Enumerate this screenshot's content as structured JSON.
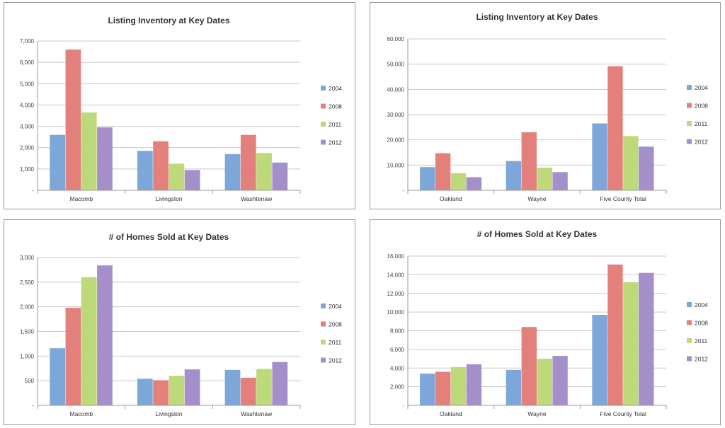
{
  "colors": {
    "2004": "#7da7d9",
    "2008": "#e4807c",
    "2011": "#bdd97a",
    "2012": "#a58fcb",
    "gridline": "#c8c8c8",
    "axis": "#9a9a9a"
  },
  "chart_data": [
    {
      "type": "bar",
      "title": "Listing Inventory at Key Dates",
      "categories": [
        "Macomb",
        "Livingston",
        "Washtenaw"
      ],
      "series": [
        {
          "name": "2004",
          "values": [
            2600,
            1850,
            1700
          ]
        },
        {
          "name": "2008",
          "values": [
            6600,
            2300,
            2600
          ]
        },
        {
          "name": "2011",
          "values": [
            3650,
            1250,
            1750
          ]
        },
        {
          "name": "2012",
          "values": [
            2950,
            950,
            1300
          ]
        }
      ],
      "yticks": [
        0,
        1000,
        2000,
        3000,
        4000,
        5000,
        6000,
        7000
      ],
      "ytick_labels": [
        "-",
        "1,000",
        "2,000",
        "3,000",
        "4,000",
        "5,000",
        "6,000",
        "7,000"
      ],
      "ylim": [
        0,
        7000
      ],
      "grid": true,
      "legend": "right"
    },
    {
      "type": "bar",
      "title": "Listing Inventory at Key Dates",
      "categories": [
        "Oakland",
        "Wayne",
        "Five County Total"
      ],
      "series": [
        {
          "name": "2004",
          "values": [
            9200,
            11600,
            26500
          ]
        },
        {
          "name": "2008",
          "values": [
            14700,
            23000,
            49200
          ]
        },
        {
          "name": "2011",
          "values": [
            6800,
            9000,
            21500
          ]
        },
        {
          "name": "2012",
          "values": [
            5200,
            7200,
            17300
          ]
        }
      ],
      "yticks": [
        0,
        10000,
        20000,
        30000,
        40000,
        50000,
        60000
      ],
      "ytick_labels": [
        "-",
        "10,000",
        "20,000",
        "30,000",
        "40,000",
        "50,000",
        "60,000"
      ],
      "ylim": [
        0,
        60000
      ],
      "grid": true,
      "legend": "right"
    },
    {
      "type": "bar",
      "title": "# of Homes Sold at Key Dates",
      "categories": [
        "Macomb",
        "Livingston",
        "Washtenaw"
      ],
      "series": [
        {
          "name": "2004",
          "values": [
            1160,
            540,
            720
          ]
        },
        {
          "name": "2008",
          "values": [
            1980,
            510,
            560
          ]
        },
        {
          "name": "2011",
          "values": [
            2600,
            600,
            740
          ]
        },
        {
          "name": "2012",
          "values": [
            2840,
            730,
            880
          ]
        }
      ],
      "yticks": [
        0,
        500,
        1000,
        1500,
        2000,
        2500,
        3000
      ],
      "ytick_labels": [
        "-",
        "500",
        "1,000",
        "1,500",
        "2,000",
        "2,500",
        "3,000"
      ],
      "ylim": [
        0,
        3000
      ],
      "grid": true,
      "legend": "right"
    },
    {
      "type": "bar",
      "title": "# of Homes Sold at Key Dates",
      "categories": [
        "Oakland",
        "Wayne",
        "Five County Total"
      ],
      "series": [
        {
          "name": "2004",
          "values": [
            3400,
            3800,
            9700
          ]
        },
        {
          "name": "2008",
          "values": [
            3600,
            8400,
            15100
          ]
        },
        {
          "name": "2011",
          "values": [
            4100,
            5000,
            13200
          ]
        },
        {
          "name": "2012",
          "values": [
            4400,
            5300,
            14200
          ]
        }
      ],
      "yticks": [
        0,
        2000,
        4000,
        6000,
        8000,
        10000,
        12000,
        14000,
        16000
      ],
      "ytick_labels": [
        "-",
        "2,000",
        "4,000",
        "6,000",
        "8,000",
        "10,000",
        "12,000",
        "14,000",
        "16,000"
      ],
      "ylim": [
        0,
        16000
      ],
      "grid": true,
      "legend": "right"
    }
  ]
}
